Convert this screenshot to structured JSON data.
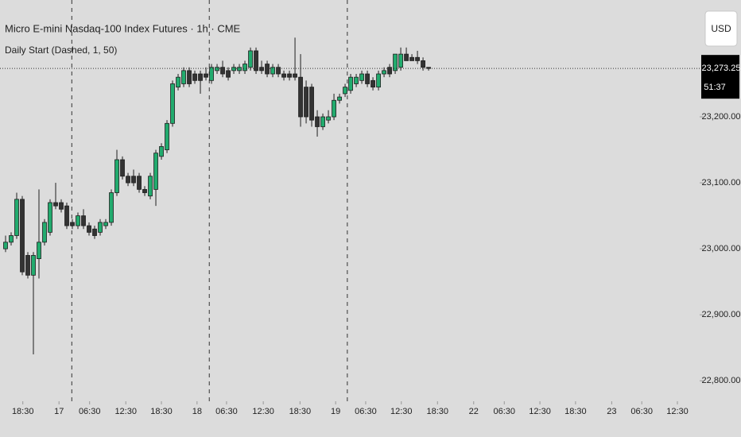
{
  "chart_data": {
    "type": "candlestick",
    "title": "Micro E-mini Nasdaq-100 Index Futures · 1h · CME",
    "indicator": "Daily Start (Dashed, 1, 50)",
    "currency": "USD",
    "countdown": "51:37",
    "last_price": {
      "value": 23273.25,
      "label": "23,273.25"
    },
    "up_color": "#22ab6e",
    "down_color": "#333333",
    "wick_color": "#1f1f1f",
    "x": [
      0,
      1,
      2,
      3,
      4,
      5,
      6,
      7,
      8,
      9,
      10,
      11,
      12,
      13,
      14,
      15,
      16,
      17,
      18,
      19,
      20,
      21,
      22,
      23,
      24,
      25,
      26,
      27,
      28,
      29,
      30,
      31,
      32,
      33,
      34,
      35,
      36,
      37,
      38,
      39,
      40,
      41,
      42,
      43,
      44,
      45,
      46,
      47,
      48,
      49,
      50,
      51,
      52,
      53,
      54,
      55,
      56,
      57,
      58,
      59,
      60,
      61,
      62,
      63,
      64,
      65,
      66,
      67,
      68,
      69,
      70,
      71,
      72,
      73,
      74,
      75,
      76
    ],
    "open": [
      23000,
      23010,
      23020,
      23075,
      22990,
      22960,
      22985,
      23010,
      23025,
      23070,
      23070,
      23065,
      23040,
      23035,
      23050,
      23035,
      23030,
      23025,
      23035,
      23040,
      23085,
      23135,
      23110,
      23110,
      23110,
      23090,
      23080,
      23090,
      23140,
      23150,
      23190,
      23245,
      23250,
      23270,
      23265,
      23265,
      23265,
      23255,
      23270,
      23275,
      23270,
      23270,
      23270,
      23270,
      23275,
      23300,
      23275,
      23280,
      23265,
      23275,
      23265,
      23265,
      23265,
      23260,
      23245,
      23245,
      23200,
      23185,
      23195,
      23200,
      23225,
      23235,
      23240,
      23250,
      23255,
      23265,
      23255,
      23245,
      23265,
      23275,
      23270,
      23275,
      23295,
      23290,
      23290,
      23285,
      23275
    ],
    "high": [
      23020,
      23025,
      23085,
      23080,
      22995,
      22995,
      23090,
      23045,
      23075,
      23100,
      23075,
      23070,
      23045,
      23055,
      23060,
      23040,
      23035,
      23045,
      23045,
      23090,
      23150,
      23140,
      23115,
      23120,
      23115,
      23095,
      23115,
      23150,
      23160,
      23195,
      23255,
      23265,
      23275,
      23275,
      23270,
      23270,
      23275,
      23280,
      23280,
      23285,
      23275,
      23280,
      23280,
      23285,
      23305,
      23305,
      23285,
      23285,
      23280,
      23280,
      23270,
      23270,
      23320,
      23295,
      23255,
      23250,
      23210,
      23205,
      23210,
      23235,
      23235,
      23250,
      23265,
      23265,
      23270,
      23270,
      23260,
      23270,
      23275,
      23280,
      23295,
      23305,
      23305,
      23295,
      23300,
      23290,
      23275
    ],
    "low": [
      22995,
      23005,
      23015,
      22960,
      22955,
      22840,
      22955,
      23005,
      23020,
      23060,
      23055,
      23030,
      23030,
      23030,
      23030,
      23020,
      23015,
      23020,
      23030,
      23035,
      23080,
      23105,
      23095,
      23095,
      23085,
      23080,
      23075,
      23065,
      23135,
      23145,
      23185,
      23240,
      23245,
      23245,
      23250,
      23235,
      23255,
      23250,
      23265,
      23260,
      23255,
      23265,
      23265,
      23265,
      23270,
      23265,
      23265,
      23260,
      23260,
      23260,
      23255,
      23255,
      23255,
      23185,
      23190,
      23185,
      23170,
      23180,
      23190,
      23195,
      23220,
      23230,
      23235,
      23245,
      23250,
      23245,
      23240,
      23240,
      23260,
      23260,
      23265,
      23270,
      23285,
      23285,
      23280,
      23270,
      23270
    ],
    "close": [
      23010,
      23020,
      23075,
      22965,
      22960,
      22990,
      23010,
      23040,
      23070,
      23065,
      23060,
      23035,
      23035,
      23050,
      23035,
      23025,
      23020,
      23040,
      23040,
      23085,
      23135,
      23110,
      23100,
      23100,
      23090,
      23085,
      23110,
      23145,
      23155,
      23190,
      23250,
      23260,
      23270,
      23250,
      23255,
      23255,
      23260,
      23275,
      23275,
      23265,
      23260,
      23275,
      23275,
      23280,
      23300,
      23270,
      23270,
      23265,
      23275,
      23265,
      23260,
      23260,
      23260,
      23200,
      23200,
      23195,
      23185,
      23200,
      23200,
      23225,
      23230,
      23245,
      23260,
      23260,
      23265,
      23250,
      23245,
      23265,
      23270,
      23265,
      23295,
      23295,
      23285,
      23285,
      23285,
      23275,
      23273.25
    ],
    "session_breaks": [
      11.9,
      36.6,
      61.4
    ],
    "xlim": [
      -1,
      124.7
    ],
    "xticks": [
      {
        "value": 3.1,
        "label": "18:30"
      },
      {
        "value": 9.6,
        "label": "17"
      },
      {
        "value": 15.1,
        "label": "06:30"
      },
      {
        "value": 21.6,
        "label": "12:30"
      },
      {
        "value": 28,
        "label": "18:30"
      },
      {
        "value": 34.4,
        "label": "18"
      },
      {
        "value": 39.7,
        "label": "06:30"
      },
      {
        "value": 46.3,
        "label": "12:30"
      },
      {
        "value": 52.9,
        "label": "18:30"
      },
      {
        "value": 59.3,
        "label": "19"
      },
      {
        "value": 64.7,
        "label": "06:30"
      },
      {
        "value": 71.1,
        "label": "12:30"
      },
      {
        "value": 77.6,
        "label": "18:30"
      },
      {
        "value": 84.1,
        "label": "22"
      },
      {
        "value": 89.6,
        "label": "06:30"
      },
      {
        "value": 96,
        "label": "12:30"
      },
      {
        "value": 102.4,
        "label": "18:30"
      },
      {
        "value": 108.9,
        "label": "23"
      },
      {
        "value": 114.3,
        "label": "06:30"
      },
      {
        "value": 120.7,
        "label": "12:30"
      }
    ],
    "ylim": [
      22769,
      23377
    ],
    "yticks": [
      {
        "value": 22800,
        "label": "22,800.00"
      },
      {
        "value": 22900,
        "label": "22,900.00"
      },
      {
        "value": 23000,
        "label": "23,000.00"
      },
      {
        "value": 23100,
        "label": "23,100.00"
      },
      {
        "value": 23200,
        "label": "23,200.00"
      }
    ]
  }
}
